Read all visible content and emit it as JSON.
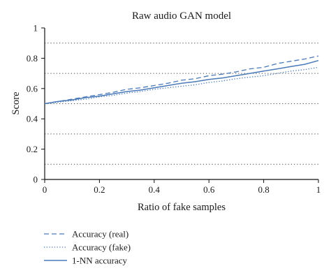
{
  "chart_data": {
    "type": "line",
    "title": "Raw audio GAN model",
    "xlabel": "Ratio of fake samples",
    "ylabel": "Score",
    "xlim": [
      0,
      1
    ],
    "ylim": [
      0,
      1
    ],
    "xticks": [
      "0",
      "0.2",
      "0.4",
      "0.6",
      "0.8",
      "1"
    ],
    "yticks": [
      "0",
      "0.2",
      "0.4",
      "0.6",
      "0.8",
      "1"
    ],
    "grid": "dotted horizontal",
    "legend_position": "below",
    "line_color": "#4a7ab8",
    "x": [
      0,
      0.05,
      0.1,
      0.15,
      0.2,
      0.25,
      0.3,
      0.35,
      0.4,
      0.45,
      0.5,
      0.55,
      0.6,
      0.65,
      0.7,
      0.75,
      0.8,
      0.85,
      0.9,
      0.95,
      1.0
    ],
    "series": [
      {
        "name": "Accuracy (real)",
        "style": "dashed",
        "values": [
          0.5,
          0.515,
          0.53,
          0.545,
          0.56,
          0.575,
          0.595,
          0.605,
          0.62,
          0.635,
          0.655,
          0.665,
          0.685,
          0.695,
          0.71,
          0.73,
          0.74,
          0.765,
          0.78,
          0.795,
          0.815
        ]
      },
      {
        "name": "Accuracy (fake)",
        "style": "dotted",
        "values": [
          0.5,
          0.51,
          0.52,
          0.53,
          0.545,
          0.555,
          0.57,
          0.58,
          0.595,
          0.605,
          0.615,
          0.625,
          0.64,
          0.65,
          0.665,
          0.675,
          0.685,
          0.7,
          0.715,
          0.725,
          0.74
        ]
      },
      {
        "name": "1-NN accuracy",
        "style": "solid",
        "values": [
          0.5,
          0.515,
          0.525,
          0.54,
          0.55,
          0.565,
          0.58,
          0.59,
          0.605,
          0.62,
          0.635,
          0.645,
          0.66,
          0.67,
          0.685,
          0.7,
          0.715,
          0.73,
          0.745,
          0.76,
          0.785
        ]
      }
    ],
    "ref_lines": [
      0.1,
      0.3,
      0.5,
      0.7,
      0.9
    ]
  }
}
